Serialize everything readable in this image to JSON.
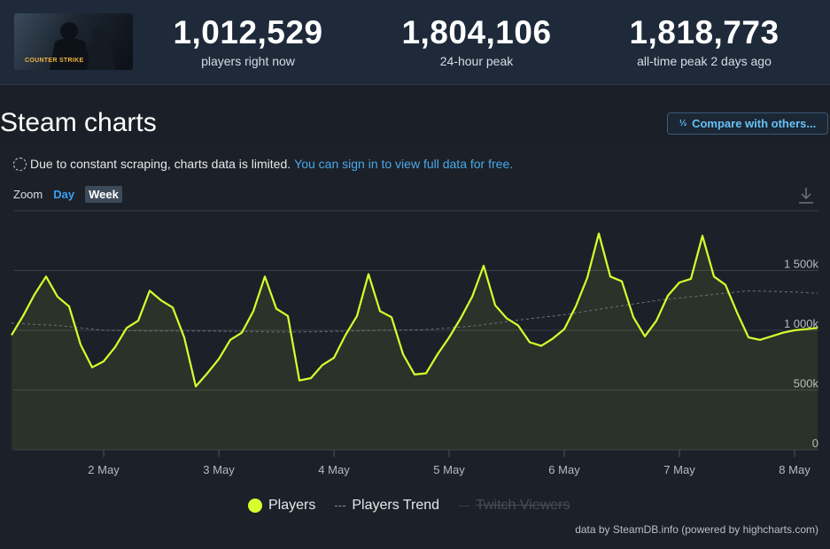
{
  "header": {
    "logo_text": "COUNTER STRIKE",
    "stats": [
      {
        "value": "1,012,529",
        "label": "players right now"
      },
      {
        "value": "1,804,106",
        "label": "24-hour peak"
      },
      {
        "value": "1,818,773",
        "label": "all-time peak 2 days ago"
      }
    ]
  },
  "page": {
    "title": "Steam charts",
    "compare_label": "Compare with others...",
    "compare_icon": "1/2 3"
  },
  "notice": {
    "text": "Due to constant scraping, charts data is limited.",
    "link": "You can sign in to view full data for free."
  },
  "zoom": {
    "label": "Zoom",
    "options": [
      "Day",
      "Week"
    ],
    "selected": "Week"
  },
  "credits": "data by SteamDB.info (powered by highcharts.com)",
  "colors": {
    "players": "#d8ff2d",
    "trend": "#6b7480",
    "accent": "#66c0f4"
  },
  "chart_data": {
    "type": "line",
    "x_ticks": [
      "2 May",
      "3 May",
      "4 May",
      "5 May",
      "6 May",
      "7 May",
      "8 May"
    ],
    "y_ticks": [
      "0",
      "500k",
      "1 000k",
      "1 500k"
    ],
    "ylim": [
      0,
      2000000
    ],
    "legend": [
      "Players",
      "Players Trend",
      "Twitch Viewers"
    ],
    "series": [
      {
        "name": "Players",
        "x": [
          1.2,
          1.3,
          1.4,
          1.5,
          1.6,
          1.7,
          1.8,
          1.9,
          2.0,
          2.1,
          2.2,
          2.3,
          2.4,
          2.5,
          2.6,
          2.7,
          2.8,
          2.9,
          3.0,
          3.1,
          3.2,
          3.3,
          3.4,
          3.5,
          3.6,
          3.7,
          3.8,
          3.9,
          4.0,
          4.1,
          4.2,
          4.3,
          4.4,
          4.5,
          4.6,
          4.7,
          4.8,
          4.9,
          5.0,
          5.1,
          5.2,
          5.3,
          5.4,
          5.5,
          5.6,
          5.7,
          5.8,
          5.9,
          6.0,
          6.1,
          6.2,
          6.3,
          6.4,
          6.5,
          6.6,
          6.7,
          6.8,
          6.9,
          7.0,
          7.1,
          7.2,
          7.3,
          7.4,
          7.5,
          7.6,
          7.7,
          7.8,
          7.9,
          8.0,
          8.1,
          8.2
        ],
        "values": [
          960000,
          1120000,
          1300000,
          1450000,
          1280000,
          1200000,
          880000,
          690000,
          740000,
          860000,
          1020000,
          1080000,
          1330000,
          1250000,
          1190000,
          940000,
          530000,
          640000,
          760000,
          920000,
          980000,
          1160000,
          1450000,
          1180000,
          1120000,
          580000,
          600000,
          710000,
          770000,
          960000,
          1120000,
          1470000,
          1160000,
          1110000,
          800000,
          630000,
          640000,
          800000,
          940000,
          1100000,
          1280000,
          1540000,
          1210000,
          1100000,
          1040000,
          900000,
          870000,
          930000,
          1010000,
          1200000,
          1440000,
          1810000,
          1450000,
          1410000,
          1110000,
          950000,
          1080000,
          1290000,
          1400000,
          1430000,
          1790000,
          1450000,
          1380000,
          1150000,
          940000,
          920000,
          950000,
          980000,
          1000000,
          1010000,
          1020000
        ]
      },
      {
        "name": "Players Trend",
        "x": [
          1.2,
          1.6,
          2.0,
          2.4,
          2.8,
          3.2,
          3.6,
          4.0,
          4.4,
          4.8,
          5.2,
          5.6,
          6.0,
          6.4,
          6.8,
          7.2,
          7.6,
          8.0,
          8.2
        ],
        "values": [
          1060000,
          1040000,
          1000000,
          995000,
          995000,
          990000,
          985000,
          990000,
          1000000,
          1005000,
          1035000,
          1085000,
          1130000,
          1190000,
          1250000,
          1290000,
          1330000,
          1320000,
          1310000
        ]
      }
    ]
  }
}
